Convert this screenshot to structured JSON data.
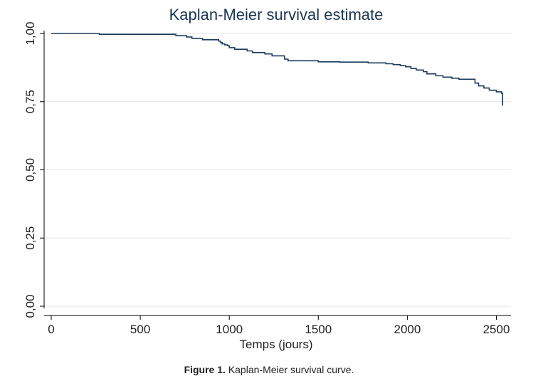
{
  "caption": {
    "label": "Figure 1.",
    "text": "Kaplan-Meier survival curve."
  },
  "chart_data": {
    "type": "line",
    "title": "Kaplan-Meier survival estimate",
    "xlabel": "Temps (jours)",
    "ylabel": "",
    "xlim": [
      0,
      2600
    ],
    "ylim": [
      0,
      1
    ],
    "x_ticks": [
      0,
      500,
      1000,
      1500,
      2000,
      2500
    ],
    "x_tick_labels": [
      "0",
      "500",
      "1000",
      "1500",
      "2000",
      "2500"
    ],
    "y_ticks": [
      0,
      0.25,
      0.5,
      0.75,
      1
    ],
    "y_tick_labels": [
      "0,00",
      "0,25",
      "0,50",
      "0,75",
      "1,00"
    ],
    "grid": "horizontal",
    "step": true,
    "series": [
      {
        "color": "#1c3a5e",
        "x": [
          0,
          270,
          700,
          760,
          790,
          850,
          940,
          950,
          960,
          975,
          990,
          1000,
          1030,
          1100,
          1130,
          1200,
          1240,
          1310,
          1330,
          1500,
          1620,
          1780,
          1880,
          1920,
          1960,
          1990,
          2020,
          2050,
          2090,
          2110,
          2160,
          2200,
          2250,
          2290,
          2380,
          2400,
          2430,
          2460,
          2500,
          2530,
          2535
        ],
        "y": [
          1.0,
          0.997,
          0.992,
          0.987,
          0.982,
          0.977,
          0.972,
          0.967,
          0.962,
          0.958,
          0.955,
          0.948,
          0.942,
          0.936,
          0.93,
          0.925,
          0.918,
          0.906,
          0.9,
          0.896,
          0.895,
          0.892,
          0.889,
          0.886,
          0.882,
          0.878,
          0.872,
          0.866,
          0.86,
          0.852,
          0.845,
          0.84,
          0.836,
          0.832,
          0.818,
          0.808,
          0.8,
          0.792,
          0.786,
          0.78,
          0.735
        ]
      }
    ]
  }
}
